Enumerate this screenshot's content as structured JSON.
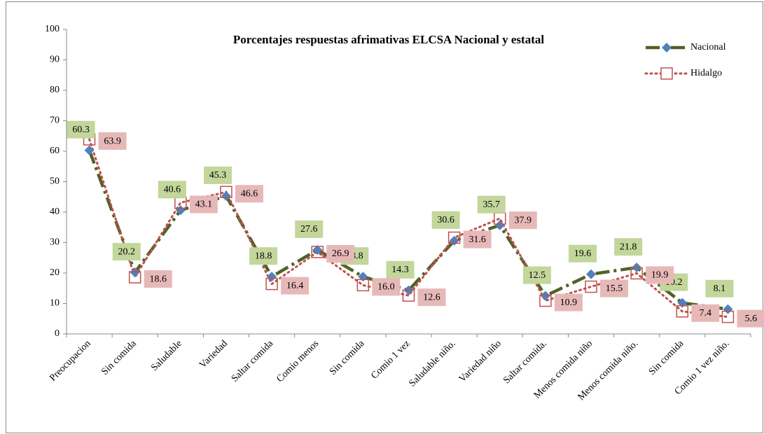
{
  "chart_data": {
    "type": "line",
    "title": "Porcentajes respuestas afrimativas ELCSA Nacional y estatal",
    "categories": [
      "Preocupacion",
      "Sin comida",
      "Saludable",
      "Variedad",
      "Saltar  comida",
      "Comio menos",
      "Sin comida",
      "Comio 1 vez",
      "Saludable niño.",
      "Variedad niño",
      "Saltar comida.",
      "Menos comida niño",
      "Menos comida niño.",
      "Sin comida",
      "Comio 1 vez niño."
    ],
    "series": [
      {
        "name": "Nacional",
        "color": "#4f6228",
        "marker_color": "#4f81bd",
        "label_color": "#c3d69b",
        "values": [
          60.3,
          20.2,
          40.6,
          45.3,
          18.8,
          27.6,
          18.8,
          14.3,
          30.6,
          35.7,
          12.5,
          19.6,
          21.8,
          10.2,
          8.1
        ]
      },
      {
        "name": "Hidalgo",
        "color": "#c0504d",
        "marker_color": "#c0504d",
        "label_color": "#e6b9b8",
        "values": [
          63.9,
          18.6,
          43.1,
          46.6,
          16.4,
          26.9,
          16.0,
          12.6,
          31.6,
          37.9,
          10.9,
          15.5,
          19.9,
          7.4,
          5.6
        ],
        "value_labels": [
          "63.9",
          "18.6",
          "43.1",
          "46.6",
          "16.4",
          "26.9",
          "16.0",
          "12.6",
          "31.6",
          "37.9",
          "10.9",
          "15.5",
          "19.9",
          "7.4",
          "5.6"
        ]
      }
    ],
    "ylim": [
      0,
      100
    ],
    "yticks": [
      0,
      10,
      20,
      30,
      40,
      50,
      60,
      70,
      80,
      90,
      100
    ],
    "grid": false,
    "legend": "top-right"
  }
}
